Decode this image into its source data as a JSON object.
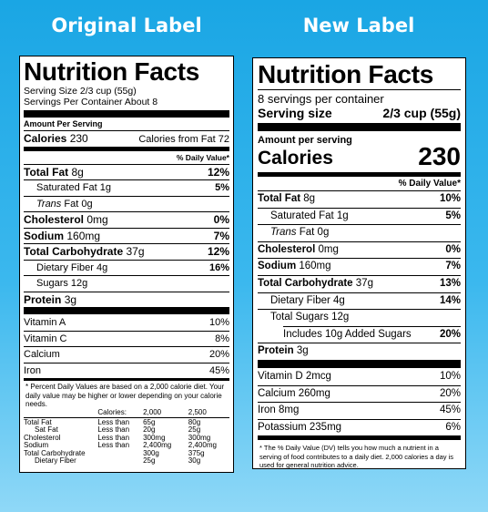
{
  "original": {
    "heading": "Original Label",
    "title": "Nutrition Facts",
    "serving_size": "Serving Size 2/3 cup (55g)",
    "servings_per_container": "Servings Per Container About 8",
    "amount_per_serving": "Amount Per Serving",
    "calories_label": "Calories",
    "calories_value": "230",
    "calories_from_fat": "Calories from Fat 72",
    "daily_value_header": "% Daily Value*",
    "nutrients": [
      {
        "label": "Total Fat",
        "amount": "8g",
        "dv": "12%"
      },
      {
        "label": "Saturated Fat",
        "amount": "1g",
        "dv": "5%"
      },
      {
        "label": "Trans",
        "amount": "Fat 0g",
        "dv": ""
      },
      {
        "label": "Cholesterol",
        "amount": "0mg",
        "dv": "0%"
      },
      {
        "label": "Sodium",
        "amount": "160mg",
        "dv": "7%"
      },
      {
        "label": "Total Carbohydrate",
        "amount": "37g",
        "dv": "12%"
      },
      {
        "label": "Dietary Fiber",
        "amount": "4g",
        "dv": "16%"
      },
      {
        "label": "Sugars",
        "amount": "12g",
        "dv": ""
      },
      {
        "label": "Protein",
        "amount": "3g",
        "dv": ""
      }
    ],
    "vitamins": [
      {
        "label": "Vitamin A",
        "dv": "10%"
      },
      {
        "label": "Vitamin C",
        "dv": "8%"
      },
      {
        "label": "Calcium",
        "dv": "20%"
      },
      {
        "label": "Iron",
        "dv": "45%"
      }
    ],
    "footnote": "* Percent Daily Values are based on a 2,000 calorie diet. Your daily value may be higher or lower depending on your calorie needs.",
    "footnote_table": {
      "header": [
        "",
        "Calories:",
        "2,000",
        "2,500"
      ],
      "rows": [
        [
          "Total Fat",
          "Less than",
          "65g",
          "80g"
        ],
        [
          "Sat Fat",
          "Less than",
          "20g",
          "25g"
        ],
        [
          "Cholesterol",
          "Less than",
          "300mg",
          "300mg"
        ],
        [
          "Sodium",
          "Less than",
          "2,400mg",
          "2,400mg"
        ],
        [
          "Total Carbohydrate",
          "",
          "300g",
          "375g"
        ],
        [
          "Dietary Fiber",
          "",
          "25g",
          "30g"
        ]
      ]
    }
  },
  "new": {
    "heading": "New Label",
    "title": "Nutrition Facts",
    "servings_per_container": "8 servings per container",
    "serving_size_label": "Serving size",
    "serving_size_value": "2/3 cup (55g)",
    "amount_per_serving": "Amount per serving",
    "calories_label": "Calories",
    "calories_value": "230",
    "daily_value_header": "% Daily Value*",
    "nutrients": [
      {
        "label": "Total Fat",
        "amount": "8g",
        "dv": "10%"
      },
      {
        "label": "Saturated Fat",
        "amount": "1g",
        "dv": "5%"
      },
      {
        "label": "Trans",
        "amount": "Fat 0g",
        "dv": ""
      },
      {
        "label": "Cholesterol",
        "amount": "0mg",
        "dv": "0%"
      },
      {
        "label": "Sodium",
        "amount": "160mg",
        "dv": "7%"
      },
      {
        "label": "Total Carbohydrate",
        "amount": "37g",
        "dv": "13%"
      },
      {
        "label": "Dietary Fiber",
        "amount": "4g",
        "dv": "14%"
      },
      {
        "label": "Total Sugars",
        "amount": "12g",
        "dv": ""
      },
      {
        "label": "Includes 10g Added Sugars",
        "amount": "",
        "dv": "20%"
      },
      {
        "label": "Protein",
        "amount": "3g",
        "dv": ""
      }
    ],
    "vitamins": [
      {
        "label": "Vitamin D 2mcg",
        "dv": "10%"
      },
      {
        "label": "Calcium 260mg",
        "dv": "20%"
      },
      {
        "label": "Iron 8mg",
        "dv": "45%"
      },
      {
        "label": "Potassium 235mg",
        "dv": "6%"
      }
    ],
    "footnote": "* The % Daily Value (DV) tells you how much a nutrient in a serving of food contributes to a daily diet. 2,000 calories a day is used for general nutrition advice."
  }
}
